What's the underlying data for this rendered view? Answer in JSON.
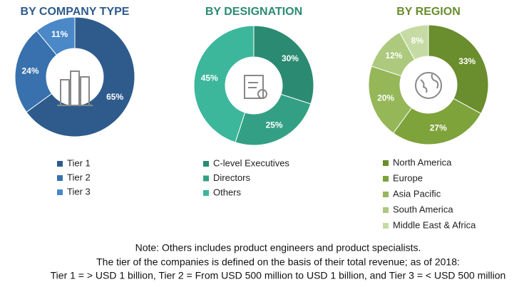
{
  "chart_data": [
    {
      "type": "pie",
      "title": "BY COMPANY TYPE",
      "categories": [
        "Tier 1",
        "Tier 2",
        "Tier 3"
      ],
      "values": [
        65,
        24,
        11
      ],
      "value_labels": [
        "65%",
        "24%",
        "11%"
      ],
      "colors": [
        "#2e5b8c",
        "#3871ad",
        "#4a88c7"
      ]
    },
    {
      "type": "pie",
      "title": "BY DESIGNATION",
      "categories": [
        "C-level Executives",
        "Directors",
        "Others"
      ],
      "values": [
        30,
        25,
        45
      ],
      "value_labels": [
        "30%",
        "25%",
        "45%"
      ],
      "colors": [
        "#2b8a72",
        "#33a085",
        "#3cb79b"
      ]
    },
    {
      "type": "pie",
      "title": "BY REGION",
      "categories": [
        "North America",
        "Europe",
        "Asia Pacific",
        "South America",
        "Middle East & Africa"
      ],
      "values": [
        33,
        27,
        20,
        12,
        8
      ],
      "value_labels": [
        "33%",
        "27%",
        "20%",
        "12%",
        "8%"
      ],
      "colors": [
        "#6a8d2d",
        "#7ea33a",
        "#95b758",
        "#acc97d",
        "#c6dba4"
      ]
    }
  ],
  "note": [
    "Note: Others includes product engineers and product specialists.",
    "The tier of the companies is defined on the basis of their total revenue; as of 2018:",
    "Tier 1 = > USD 1 billion, Tier 2 = From USD 500 million to USD 1 billion, and Tier 3 = < USD 500 million"
  ]
}
